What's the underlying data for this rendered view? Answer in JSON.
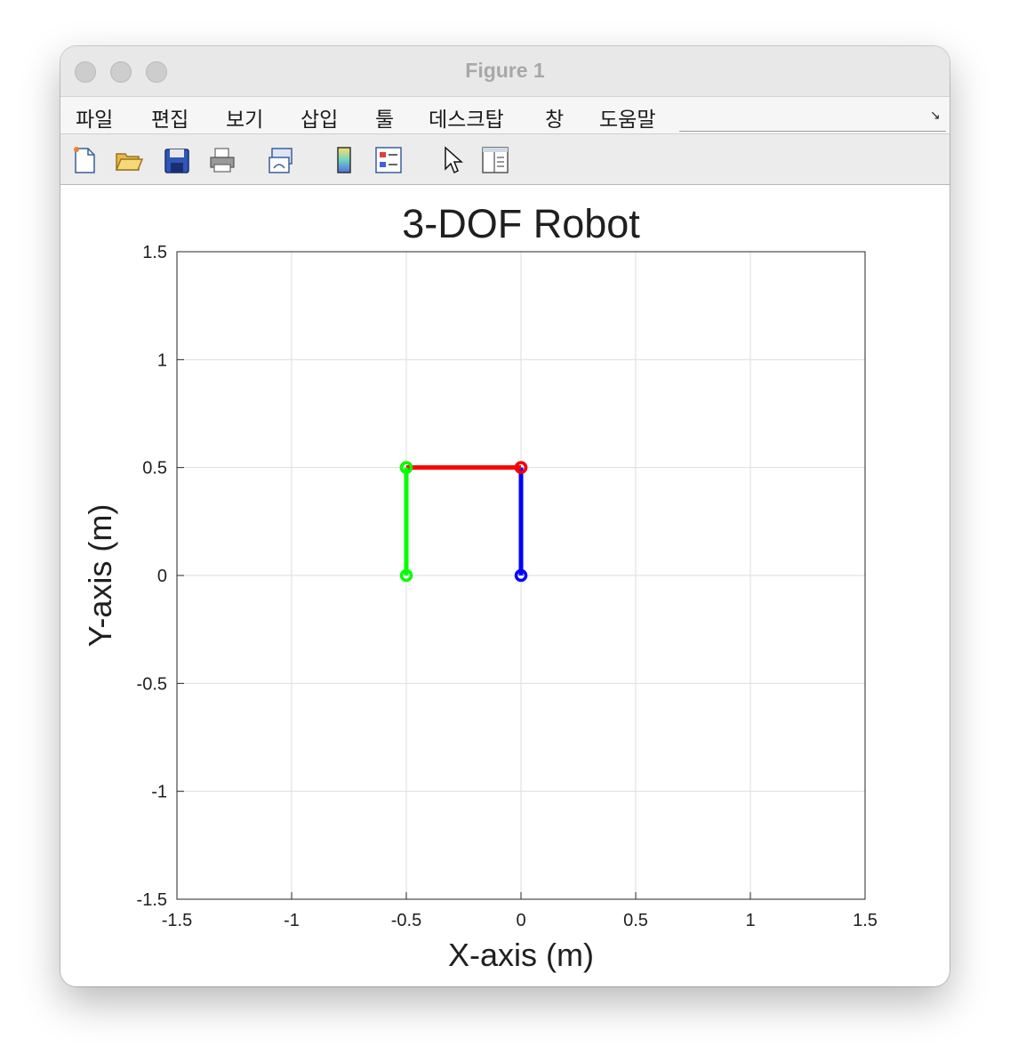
{
  "window": {
    "title": "Figure 1"
  },
  "menu": [
    "파일",
    "편집",
    "보기",
    "삽입",
    "툴",
    "데스크탑",
    "창",
    "도움말"
  ],
  "toolbar_icons": [
    "new-figure-icon",
    "open-file-icon",
    "save-icon",
    "print-icon",
    "link-plot-icon",
    "colorbar-icon",
    "legend-icon",
    "pointer-icon",
    "property-inspector-icon"
  ],
  "chart_data": {
    "type": "line",
    "title": "3-DOF Robot",
    "xlabel": "X-axis (m)",
    "ylabel": "Y-axis (m)",
    "xlim": [
      -1.5,
      1.5
    ],
    "ylim": [
      -1.5,
      1.5
    ],
    "xticks": [
      -1.5,
      -1,
      -0.5,
      0,
      0.5,
      1,
      1.5
    ],
    "yticks": [
      -1.5,
      -1,
      -0.5,
      0,
      0.5,
      1,
      1.5
    ],
    "xtick_labels": [
      "-1.5",
      "-1",
      "-0.5",
      "0",
      "0.5",
      "1",
      "1.5"
    ],
    "ytick_labels": [
      "-1.5",
      "-1",
      "-0.5",
      "0",
      "0.5",
      "1",
      "1.5"
    ],
    "grid": true,
    "series": [
      {
        "color": "#0000ff",
        "marker": "o",
        "x": [
          0,
          0
        ],
        "y": [
          0,
          0.5
        ]
      },
      {
        "color": "#ff0000",
        "marker": "o",
        "x": [
          0,
          -0.5
        ],
        "y": [
          0.5,
          0.5
        ]
      },
      {
        "color": "#00ff00",
        "marker": "o",
        "x": [
          -0.5,
          -0.5
        ],
        "y": [
          0.5,
          0
        ]
      }
    ]
  }
}
